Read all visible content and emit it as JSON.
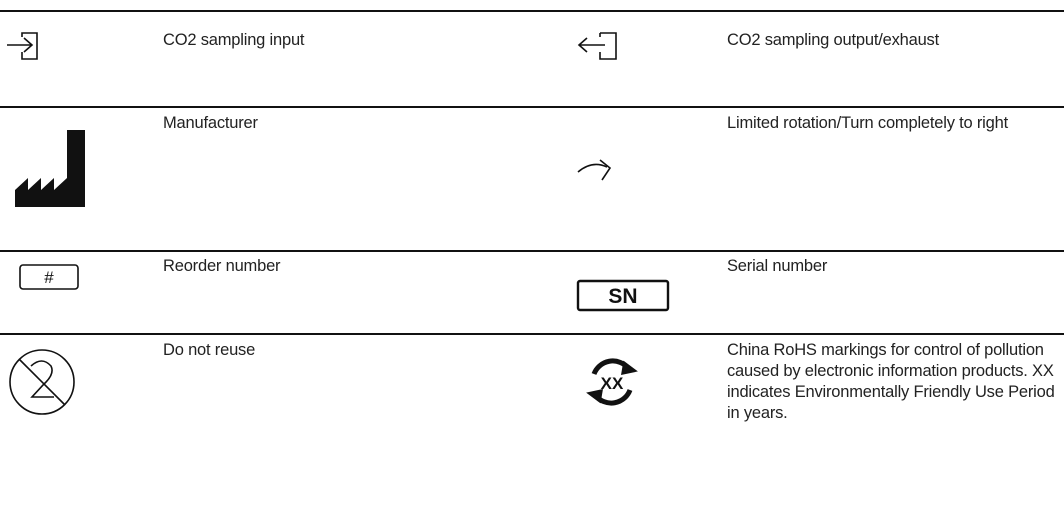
{
  "rows": [
    {
      "left": {
        "description": "CO2 sampling input"
      },
      "right": {
        "description": "CO2 sampling output/exhaust"
      }
    },
    {
      "left": {
        "description": "Manufacturer"
      },
      "right": {
        "description": "Limited rotation/Turn completely to right"
      }
    },
    {
      "left": {
        "description": "Reorder number",
        "symbol_text": "#"
      },
      "right": {
        "description": "Serial number",
        "symbol_text": "SN"
      }
    },
    {
      "left": {
        "description": "Do not reuse"
      },
      "right": {
        "description": "China RoHS markings for control of pollution caused by electronic information products. XX indicates Environmentally Friendly Use Period in years.",
        "symbol_text": "XX"
      }
    }
  ]
}
